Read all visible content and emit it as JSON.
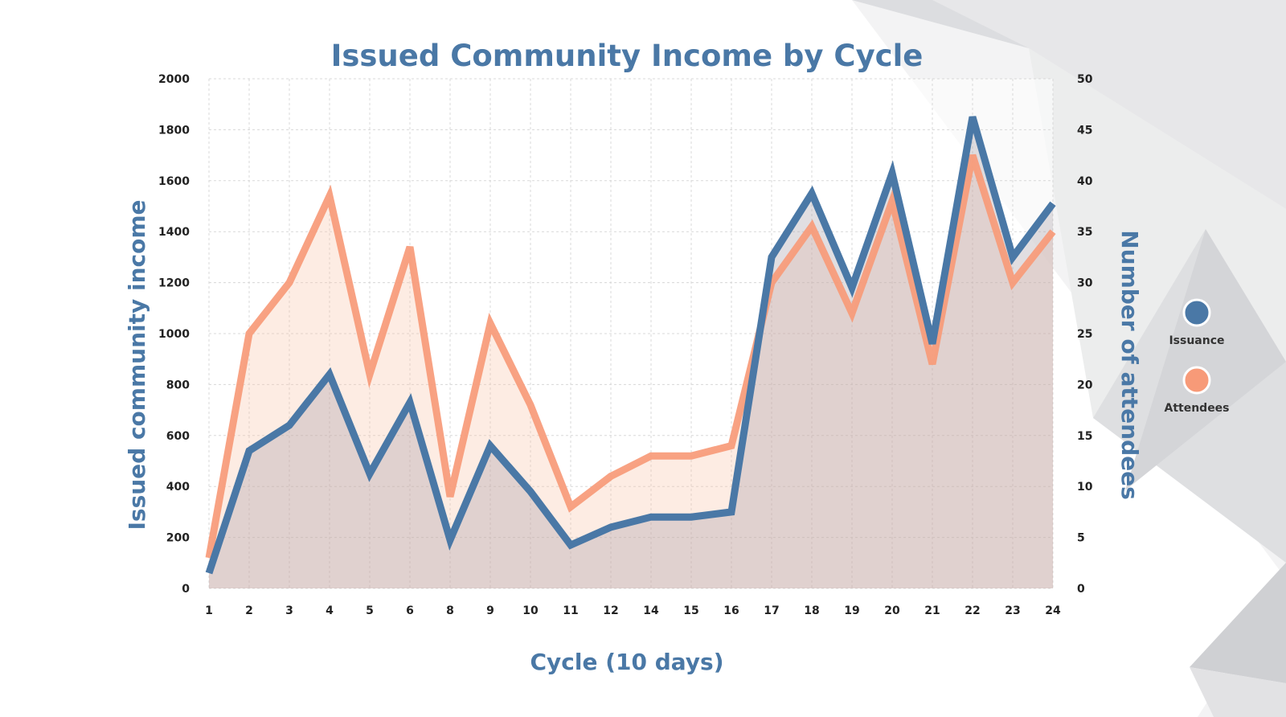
{
  "chart_data": {
    "type": "line",
    "title": "Issued Community Income by Cycle",
    "xlabel": "Cycle (10 days)",
    "ylabel": "Issued community income",
    "ylabel_right": "Number of attendees",
    "categories": [
      "1",
      "2",
      "3",
      "4",
      "5",
      "6",
      "8",
      "9",
      "10",
      "11",
      "12",
      "14",
      "15",
      "16",
      "17",
      "18",
      "19",
      "20",
      "21",
      "22",
      "23",
      "24"
    ],
    "ylim": [
      0,
      2000
    ],
    "ylim_right": [
      0,
      50
    ],
    "yticks": [
      "0",
      "200",
      "400",
      "600",
      "800",
      "1000",
      "1200",
      "1400",
      "1600",
      "1800",
      "2000"
    ],
    "yticks_right": [
      "0",
      "5",
      "10",
      "15",
      "20",
      "25",
      "30",
      "35",
      "40",
      "45",
      "50"
    ],
    "grid": true,
    "legend_position": "right",
    "series": [
      {
        "name": "Issuance",
        "axis": "left",
        "color": "#4a78a6",
        "values": [
          60,
          540,
          640,
          840,
          450,
          730,
          190,
          560,
          380,
          170,
          240,
          280,
          280,
          300,
          1300,
          1550,
          1180,
          1630,
          960,
          1850,
          1300,
          1510
        ]
      },
      {
        "name": "Attendees",
        "axis": "right",
        "color": "#f79a78",
        "values": [
          3,
          25,
          30,
          38.5,
          21,
          33.5,
          9,
          26,
          18,
          8,
          11,
          13,
          13,
          14,
          30,
          35.5,
          27,
          38,
          22,
          42.5,
          30,
          35
        ]
      }
    ]
  }
}
